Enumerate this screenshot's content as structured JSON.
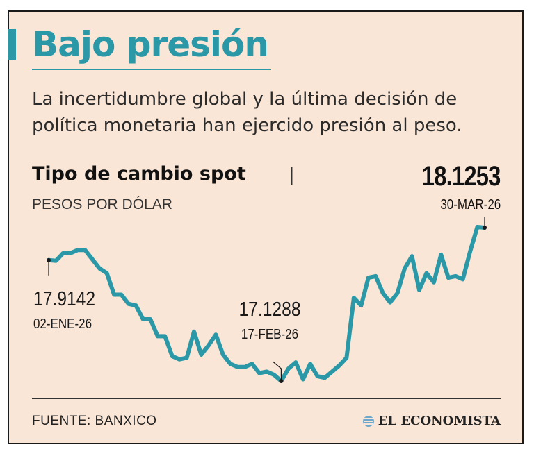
{
  "header": {
    "title": "Bajo presión",
    "subtitle": "La incertidumbre global y la última decisión de política monetaria han ejercido presión al peso."
  },
  "chart_header": {
    "title": "Tipo de cambio spot",
    "separator": "|",
    "units": "PESOS POR DÓLAR",
    "last_value": "18.1253",
    "last_date": "30-MAR-26"
  },
  "colors": {
    "background": "#fae6d6",
    "accent": "#2a98a7",
    "line": "#2a98a7",
    "text": "#111111"
  },
  "chart_data": {
    "type": "line",
    "title": "Tipo de cambio spot",
    "ylabel": "PESOS POR DÓLAR",
    "xlabel": "",
    "x_start": "02-ENE-26",
    "x_end": "30-MAR-26",
    "series": [
      {
        "values": [
          17.9142,
          17.91,
          17.96,
          17.96,
          17.98,
          17.98,
          17.92,
          17.86,
          17.83,
          17.69,
          17.69,
          17.63,
          17.62,
          17.53,
          17.53,
          17.42,
          17.42,
          17.29,
          17.27,
          17.28,
          17.45,
          17.3,
          17.36,
          17.43,
          17.3,
          17.24,
          17.22,
          17.22,
          17.24,
          17.18,
          17.19,
          17.17,
          17.1288,
          17.21,
          17.25,
          17.14,
          17.24,
          17.16,
          17.15,
          17.19,
          17.23,
          17.28,
          17.67,
          17.62,
          17.8,
          17.81,
          17.7,
          17.64,
          17.7,
          17.86,
          17.94,
          17.72,
          17.83,
          17.77,
          17.95,
          17.8,
          17.81,
          17.79,
          17.97,
          18.13,
          18.1253
        ]
      }
    ],
    "annotations": [
      {
        "label": "17.9142",
        "date": "02-ENE-26",
        "value": 17.9142
      },
      {
        "label": "17.1288",
        "date": "17-FEB-26",
        "value": 17.1288
      },
      {
        "label": "18.1253",
        "date": "30-MAR-26",
        "value": 18.1253
      }
    ],
    "ylim": [
      17.1,
      18.2
    ],
    "grid": false,
    "legend": "none"
  },
  "footer": {
    "source": "FUENTE: BANXICO",
    "brand": "EL ECONOMISTA"
  }
}
